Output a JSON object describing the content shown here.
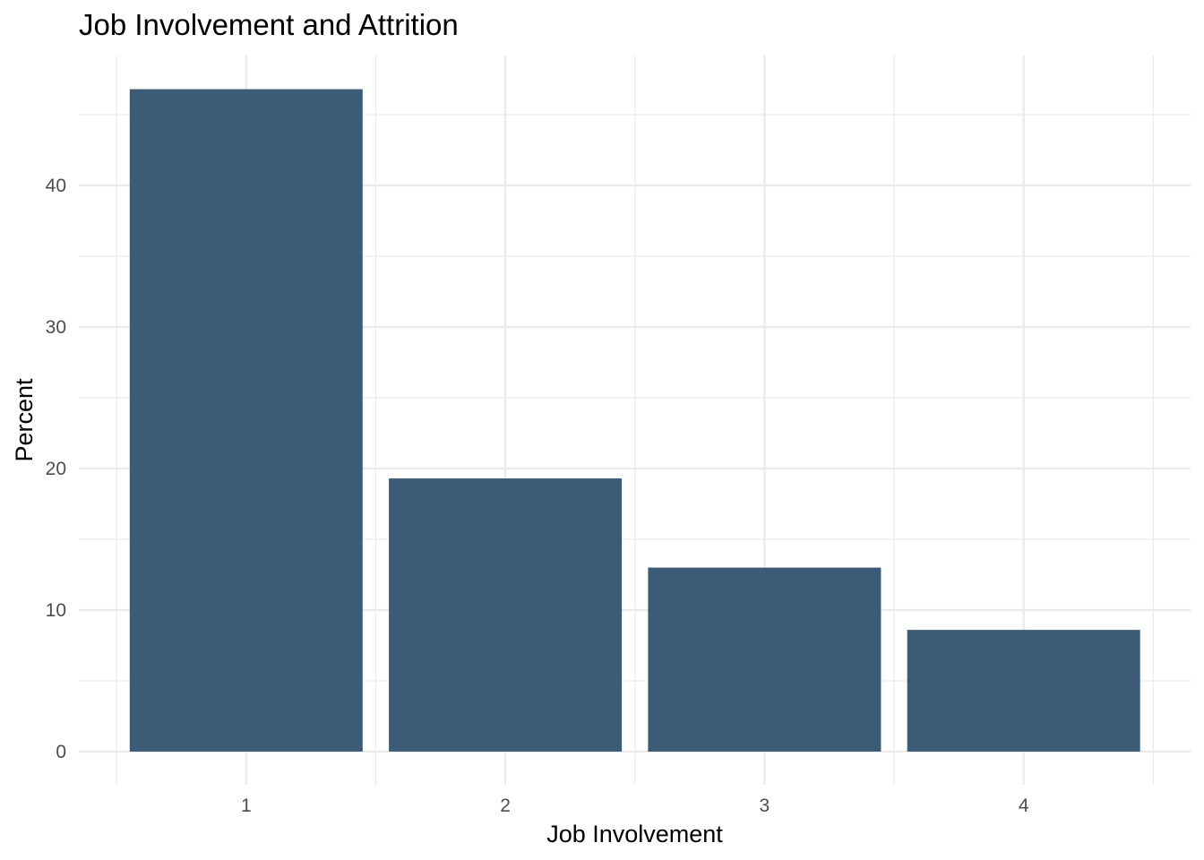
{
  "chart_data": {
    "type": "bar",
    "title": "Job Involvement and Attrition",
    "xlabel": "Job Involvement",
    "ylabel": "Percent",
    "categories": [
      "1",
      "2",
      "3",
      "4"
    ],
    "values": [
      46.8,
      19.3,
      13.0,
      8.6
    ],
    "ylim": [
      0,
      48.5
    ],
    "y_ticks": [
      0,
      10,
      20,
      30,
      40
    ],
    "y_tick_labels": [
      "0",
      "10",
      "20",
      "30",
      "40"
    ],
    "grid": true,
    "legend": "none",
    "bar_color": "#3b5b77",
    "grid_color": "#ebebeb",
    "background": "#ffffff"
  }
}
